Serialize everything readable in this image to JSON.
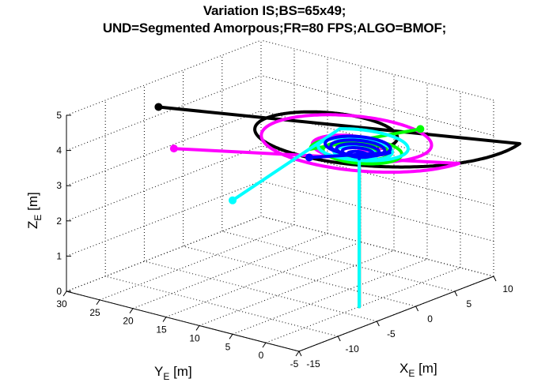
{
  "chart_data": {
    "type": "line3d",
    "title_lines": [
      "Variation IS;BS=65x49;",
      "UND=Segmented Amorpous;FR=80 FPS;ALGO=BMOF;"
    ],
    "xlabel": "X",
    "xlabel_sub": "E",
    "xlabel_unit": " [m]",
    "ylabel": "Y",
    "ylabel_sub": "E",
    "ylabel_unit": " [m]",
    "zlabel": "Z",
    "zlabel_sub": "E",
    "zlabel_unit": " [m]",
    "xlim": [
      -15,
      10
    ],
    "ylim": [
      -5,
      30
    ],
    "zlim": [
      0,
      5
    ],
    "x_ticks": [
      -15,
      -10,
      -5,
      0,
      5,
      10
    ],
    "y_ticks": [
      -5,
      0,
      5,
      10,
      15,
      20,
      25,
      30
    ],
    "z_ticks": [
      0,
      1,
      2,
      3,
      4,
      5
    ],
    "grid": true,
    "series": [
      {
        "color": "#000000",
        "start": [
          -3,
          0,
          0
        ],
        "rise_to": [
          -3,
          0,
          4.6
        ],
        "spiral_center": [
          -3,
          0
        ],
        "spiral_start_radius": 2.5,
        "spiral_end_radius": 21,
        "turns": 1.05,
        "z_end": 5.3,
        "end_point": [
          -10,
          22,
          5.2
        ]
      },
      {
        "color": "#ff00ff",
        "start": [
          -3,
          0,
          0
        ],
        "rise_to": [
          -3,
          0,
          4.5
        ],
        "spiral_center": [
          -3,
          0
        ],
        "spiral_start_radius": 2.0,
        "spiral_end_radius": 15,
        "turns": 2.0,
        "z_end": 4.8,
        "end_point": [
          -14,
          15,
          4.7
        ]
      },
      {
        "color": "#00ff00",
        "start": [
          -3,
          0,
          0
        ],
        "rise_to": [
          -3,
          0,
          4.4
        ],
        "spiral_center": [
          -3,
          0
        ],
        "spiral_start_radius": 2.0,
        "spiral_end_radius": 9,
        "turns": 2.6,
        "z_end": 4.4,
        "end_point": [
          4,
          -1,
          4.5
        ]
      },
      {
        "color": "#00ffff",
        "start": [
          -3,
          0,
          0
        ],
        "rise_to": [
          -3,
          0,
          4.3
        ],
        "spiral_center": [
          -3,
          0
        ],
        "spiral_start_radius": 2.0,
        "spiral_end_radius": 10,
        "turns": 2.4,
        "z_end": 4.6,
        "end_point": [
          -15,
          5,
          3.8
        ]
      },
      {
        "color": "#0000ff",
        "start": [
          -3,
          0,
          4.2
        ],
        "rise_to": [
          -3,
          0,
          4.3
        ],
        "spiral_center": [
          -3,
          0
        ],
        "spiral_start_radius": 1.0,
        "spiral_end_radius": 7,
        "turns": 5.0,
        "z_end": 4.6,
        "end_point": [
          -6,
          4,
          4.3
        ]
      }
    ]
  }
}
